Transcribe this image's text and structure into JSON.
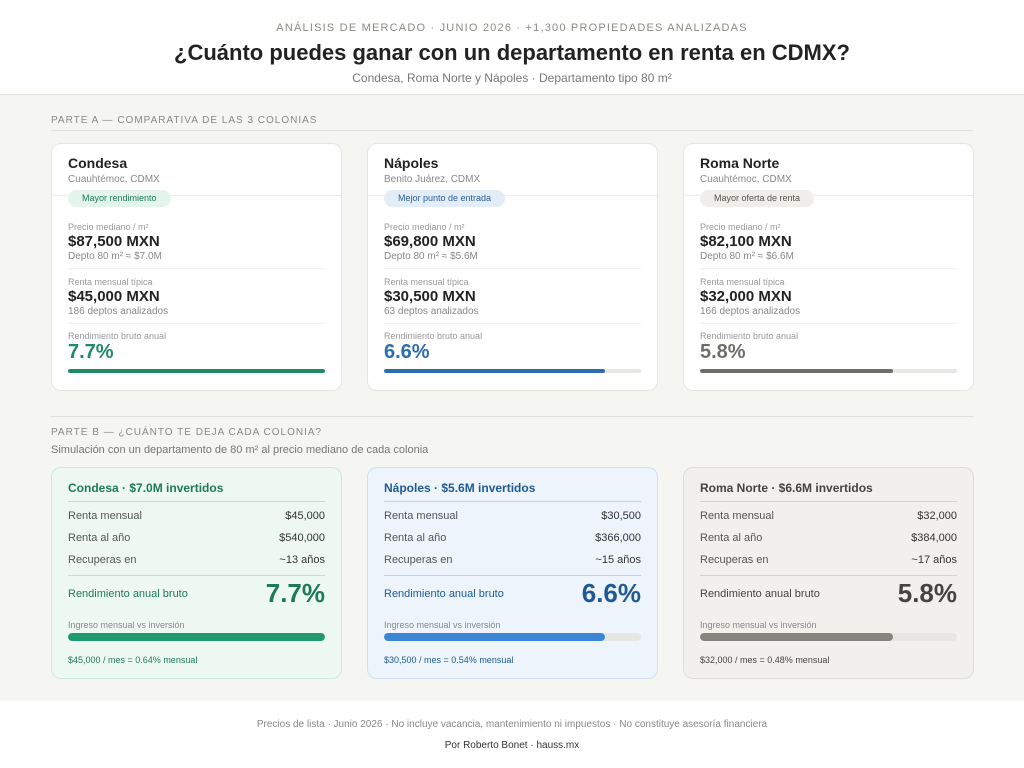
{
  "header": {
    "eyebrow": "ANÁLISIS DE MERCADO · JUNIO 2026 · +1,300 PROPIEDADES ANALIZADAS",
    "title": "¿Cuánto puedes ganar con un departamento en renta en CDMX?",
    "subtitle": "Condesa, Roma Norte y Nápoles · Departamento tipo 80 m²"
  },
  "partA": {
    "label": "PARTE A — COMPARATIVA DE LAS 3 COLONIAS",
    "cards": [
      {
        "name": "Condesa",
        "location": "Cuauhtémoc, CDMX",
        "badge": "Mayor rendimiento",
        "price_label": "Precio mediano / m²",
        "price": "$87,500 MXN",
        "price_sub": "Depto 80 m² ≈ $7.0M",
        "rent_label": "Renta mensual típica",
        "rent": "$45,000 MXN",
        "rent_sub": "186 deptos analizados",
        "yield_label": "Rendimiento bruto anual",
        "yield": "7.7%",
        "bar_fraction": 1.0,
        "accent": "#1f8a63",
        "badge_bg": "#e3f4ec",
        "badge_color": "#1f7a57"
      },
      {
        "name": "Nápoles",
        "location": "Benito Juárez, CDMX",
        "badge": "Mejor punto de entrada",
        "price_label": "Precio mediano / m²",
        "price": "$69,800 MXN",
        "price_sub": "Depto 80 m² ≈ $5.6M",
        "rent_label": "Renta mensual típica",
        "rent": "$30,500 MXN",
        "rent_sub": "63 deptos analizados",
        "yield_label": "Rendimiento bruto anual",
        "yield": "6.6%",
        "bar_fraction": 0.86,
        "accent": "#2c6cb0",
        "badge_bg": "#e2edf8",
        "badge_color": "#2c5f95"
      },
      {
        "name": "Roma Norte",
        "location": "Cuauhtémoc, CDMX",
        "badge": "Mayor oferta de renta",
        "price_label": "Precio mediano / m²",
        "price": "$82,100 MXN",
        "price_sub": "Depto 80 m² ≈ $6.6M",
        "rent_label": "Renta mensual típica",
        "rent": "$32,000 MXN",
        "rent_sub": "166 deptos analizados",
        "yield_label": "Rendimiento bruto anual",
        "yield": "5.8%",
        "bar_fraction": 0.75,
        "accent": "#6e6e68",
        "badge_bg": "#efeeea",
        "badge_color": "#555550"
      }
    ]
  },
  "partB": {
    "label": "PARTE B — ¿CUÁNTO TE DEJA CADA COLONIA?",
    "subtitle": "Simulación con un departamento de 80 m² al precio mediano de cada colonia",
    "sims": [
      {
        "title": "Condesa · $7.0M invertidos",
        "rows": [
          {
            "label": "Renta mensual",
            "value": "$45,000"
          },
          {
            "label": "Renta al año",
            "value": "$540,000"
          },
          {
            "label": "Recuperas en",
            "value": "~13 años"
          }
        ],
        "yield_label": "Rendimiento anual bruto",
        "yield": "7.7%",
        "income_label": "Ingreso mensual vs inversión",
        "bar_fraction": 1.0,
        "note": "$45,000 / mes = 0.64% mensual",
        "bg": "#eef8f3",
        "border": "#cfe9dc",
        "title_color": "#1f7a57",
        "accent": "#1f9a6c",
        "rule": "#bfe0d0"
      },
      {
        "title": "Nápoles · $5.6M invertidos",
        "rows": [
          {
            "label": "Renta mensual",
            "value": "$30,500"
          },
          {
            "label": "Renta al año",
            "value": "$366,000"
          },
          {
            "label": "Recuperas en",
            "value": "~15 años"
          }
        ],
        "yield_label": "Rendimiento anual bruto",
        "yield": "6.6%",
        "income_label": "Ingreso mensual vs inversión",
        "bar_fraction": 0.86,
        "note": "$30,500 / mes = 0.54% mensual",
        "bg": "#edf4fb",
        "border": "#cfe0f1",
        "title_color": "#1f5a92",
        "accent": "#3b87d6",
        "rule": "#bcd5ec"
      },
      {
        "title": "Roma Norte · $6.6M invertidos",
        "rows": [
          {
            "label": "Renta mensual",
            "value": "$32,000"
          },
          {
            "label": "Renta al año",
            "value": "$384,000"
          },
          {
            "label": "Recuperas en",
            "value": "~17 años"
          }
        ],
        "yield_label": "Rendimiento anual bruto",
        "yield": "5.8%",
        "income_label": "Ingreso mensual vs inversión",
        "bar_fraction": 0.75,
        "note": "$32,000 / mes = 0.48% mensual",
        "bg": "#f1f0ec",
        "border": "#dfdeda",
        "title_color": "#444440",
        "accent": "#85857f",
        "rule": "#d4d3ce"
      }
    ]
  },
  "footer": {
    "note": "Precios de lista · Junio 2026 · No incluye vacancia, mantenimiento ni impuestos · No constituye asesoría financiera",
    "credit": "Por Roberto Bonet · hauss.mx"
  }
}
